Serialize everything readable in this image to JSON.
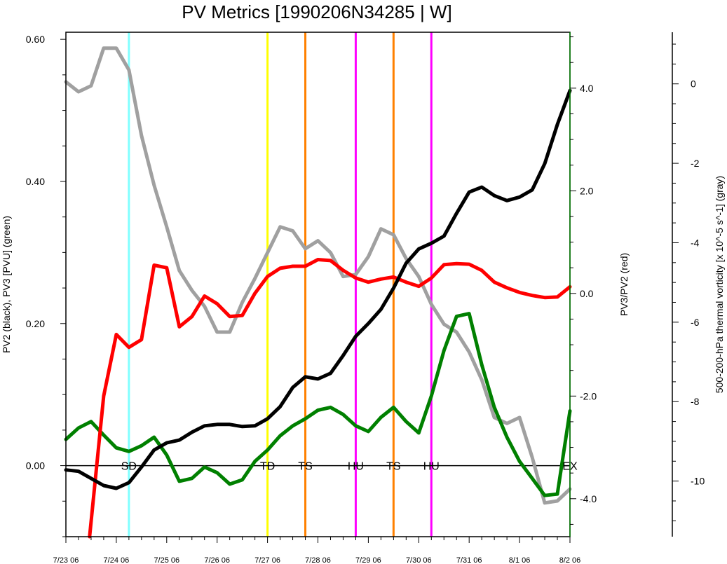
{
  "chart_data": {
    "type": "line",
    "title": "PV Metrics [1990206N34285 | W]",
    "x_tick_labels": [
      "7/23 06",
      "7/24 06",
      "7/25 06",
      "7/26 06",
      "7/27 06",
      "7/28 06",
      "7/29 06",
      "7/30 06",
      "7/31 06",
      "8/1 06",
      "8/2 06"
    ],
    "axes": {
      "left": {
        "label": "PV2 (black), PV3 [PVU] (green)",
        "ylim": [
          -0.1,
          0.61
        ],
        "ticks": [
          0.0,
          0.2,
          0.4,
          0.6
        ],
        "tick_labels": [
          "0.00",
          "0.20",
          "0.40",
          "0.60"
        ]
      },
      "right": {
        "label": "PV3/PV2 (red)",
        "ylim": [
          -4.74,
          5.09
        ],
        "ticks": [
          -4.0,
          -2.0,
          0.0,
          2.0,
          4.0
        ],
        "tick_labels": [
          "-4.0",
          "-2.0",
          "0.0",
          "2.0",
          "4.0"
        ]
      },
      "far_right": {
        "label": "500-200-hPa thermal vorticity [x 10^-5 s^-1] (gray)",
        "ylim": [
          -11.4,
          1.3
        ],
        "ticks": [
          0,
          -2,
          -4,
          -6,
          -8,
          -10
        ],
        "tick_labels": [
          "0",
          "-2",
          "-4",
          "-6",
          "-8",
          "-10"
        ]
      }
    },
    "series": [
      {
        "name": "PV2",
        "axis": "left",
        "color": "#000000",
        "x": [
          0,
          0.25,
          0.5,
          0.75,
          1,
          1.25,
          1.5,
          1.75,
          2,
          2.25,
          2.5,
          2.75,
          3,
          3.25,
          3.5,
          3.75,
          4,
          4.25,
          4.5,
          4.75,
          5,
          5.25,
          5.5,
          5.75,
          6,
          6.25,
          6.5,
          6.75,
          7,
          7.25,
          7.5,
          7.75,
          8,
          8.25,
          8.5,
          8.75,
          9,
          9.25,
          9.5,
          9.75,
          10
        ],
        "values": [
          -0.006,
          -0.008,
          -0.018,
          -0.028,
          -0.032,
          -0.024,
          -0.002,
          0.022,
          0.032,
          0.036,
          0.047,
          0.056,
          0.058,
          0.058,
          0.055,
          0.056,
          0.066,
          0.083,
          0.11,
          0.125,
          0.122,
          0.13,
          0.155,
          0.182,
          0.2,
          0.22,
          0.25,
          0.285,
          0.305,
          0.313,
          0.323,
          0.355,
          0.385,
          0.392,
          0.38,
          0.373,
          0.378,
          0.388,
          0.425,
          0.48,
          0.528
        ]
      },
      {
        "name": "PV3",
        "axis": "left",
        "color": "#008000",
        "x": [
          0,
          0.25,
          0.5,
          0.75,
          1,
          1.25,
          1.5,
          1.75,
          2,
          2.25,
          2.5,
          2.75,
          3,
          3.25,
          3.5,
          3.75,
          4,
          4.25,
          4.5,
          4.75,
          5,
          5.25,
          5.5,
          5.75,
          6,
          6.25,
          6.5,
          6.75,
          7,
          7.25,
          7.5,
          7.75,
          8,
          8.25,
          8.5,
          8.75,
          9,
          9.25,
          9.5,
          9.75,
          10
        ],
        "values": [
          0.037,
          0.053,
          0.062,
          0.043,
          0.025,
          0.02,
          0.028,
          0.04,
          0.015,
          -0.022,
          -0.018,
          -0.002,
          -0.01,
          -0.026,
          -0.02,
          0.006,
          0.022,
          0.042,
          0.056,
          0.066,
          0.078,
          0.082,
          0.072,
          0.056,
          0.048,
          0.068,
          0.082,
          0.062,
          0.046,
          0.098,
          0.162,
          0.21,
          0.214,
          0.142,
          0.082,
          0.04,
          0.006,
          -0.018,
          -0.042,
          -0.04,
          0.077
        ]
      },
      {
        "name": "PV3/PV2",
        "axis": "right",
        "color": "#ff0000",
        "x": [
          0.47,
          0.75,
          1,
          1.25,
          1.5,
          1.75,
          2,
          2.25,
          2.5,
          2.75,
          3,
          3.25,
          3.5,
          3.75,
          4,
          4.25,
          4.5,
          4.75,
          5,
          5.25,
          5.5,
          5.75,
          6,
          6.25,
          6.5,
          6.75,
          7,
          7.25,
          7.5,
          7.75,
          8,
          8.25,
          8.5,
          8.75,
          9,
          9.25,
          9.5,
          9.75,
          10
        ],
        "values": [
          -4.74,
          -2.0,
          -0.8,
          -1.05,
          -0.9,
          0.55,
          0.5,
          -0.65,
          -0.45,
          -0.05,
          -0.2,
          -0.45,
          -0.43,
          0.0,
          0.33,
          0.49,
          0.53,
          0.53,
          0.66,
          0.64,
          0.45,
          0.3,
          0.22,
          0.28,
          0.32,
          0.22,
          0.14,
          0.3,
          0.56,
          0.58,
          0.57,
          0.45,
          0.22,
          0.11,
          0.02,
          -0.04,
          -0.08,
          -0.07,
          0.13
        ]
      },
      {
        "name": "thermal vorticity",
        "axis": "far_right",
        "color": "#a0a0a0",
        "x": [
          0,
          0.25,
          0.5,
          0.75,
          1,
          1.25,
          1.5,
          1.75,
          2,
          2.25,
          2.5,
          2.75,
          3,
          3.25,
          3.5,
          3.75,
          4,
          4.25,
          4.5,
          4.75,
          5,
          5.25,
          5.5,
          5.75,
          6,
          6.25,
          6.5,
          6.75,
          7,
          7.25,
          7.5,
          7.75,
          8,
          8.25,
          8.5,
          8.75,
          9,
          9.25,
          9.5,
          9.75,
          10
        ],
        "values": [
          0.05,
          -0.2,
          -0.05,
          0.9,
          0.9,
          0.35,
          -1.3,
          -2.55,
          -3.6,
          -4.7,
          -5.2,
          -5.6,
          -6.25,
          -6.25,
          -5.5,
          -4.9,
          -4.25,
          -3.6,
          -3.7,
          -4.15,
          -3.95,
          -4.25,
          -4.85,
          -4.8,
          -4.35,
          -3.65,
          -3.8,
          -4.4,
          -4.85,
          -5.55,
          -6.05,
          -6.25,
          -6.75,
          -7.45,
          -8.4,
          -8.55,
          -8.4,
          -9.4,
          -10.55,
          -10.5,
          -10.2
        ]
      }
    ],
    "events": [
      {
        "label": "SD",
        "x": 1.25,
        "color": "#80ffff"
      },
      {
        "label": "TD",
        "x": 4.0,
        "color": "#ffff00"
      },
      {
        "label": "TS",
        "x": 4.75,
        "color": "#ff8000"
      },
      {
        "label": "HU",
        "x": 5.75,
        "color": "#ff00ff"
      },
      {
        "label": "TS",
        "x": 6.5,
        "color": "#ff8000"
      },
      {
        "label": "HU",
        "x": 7.25,
        "color": "#ff00ff"
      },
      {
        "label": "EX",
        "x": 10.0,
        "color": "#008000"
      }
    ],
    "xlim": [
      0,
      10
    ],
    "zero_line": true,
    "grid": false,
    "legend": "none"
  }
}
